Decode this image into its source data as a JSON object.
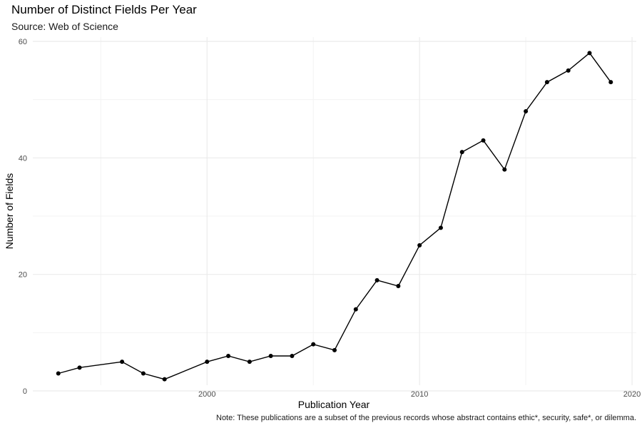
{
  "chart_data": {
    "type": "line",
    "title": "Number of Distinct Fields Per Year",
    "subtitle": "Source: Web of Science",
    "xlabel": "Publication Year",
    "ylabel": "Number of Fields",
    "caption": "Note: These publications are a subset of the previous records whose abstract contains ethic*, security, safe*, or dilemma.",
    "xlim": [
      1991.8,
      2020.2
    ],
    "ylim": [
      0,
      60
    ],
    "x_ticks": [
      2000,
      2010,
      2020
    ],
    "y_ticks": [
      0,
      20,
      40,
      60
    ],
    "grid": true,
    "colors": {
      "line": "#000000",
      "grid_major": "#ebebeb",
      "grid_minor": "#f3f3f3"
    },
    "series": [
      {
        "x": [
          1993,
          1994,
          1996,
          1997,
          1998,
          2000,
          2001,
          2002,
          2003,
          2004,
          2005,
          2006,
          2007,
          2008,
          2009,
          2010,
          2011,
          2012,
          2013,
          2014,
          2015,
          2016,
          2017,
          2018,
          2019
        ],
        "values": [
          3,
          4,
          5,
          3,
          2,
          5,
          6,
          5,
          6,
          6,
          8,
          7,
          14,
          19,
          18,
          25,
          28,
          41,
          43,
          38,
          48,
          53,
          55,
          58,
          53
        ]
      }
    ]
  }
}
